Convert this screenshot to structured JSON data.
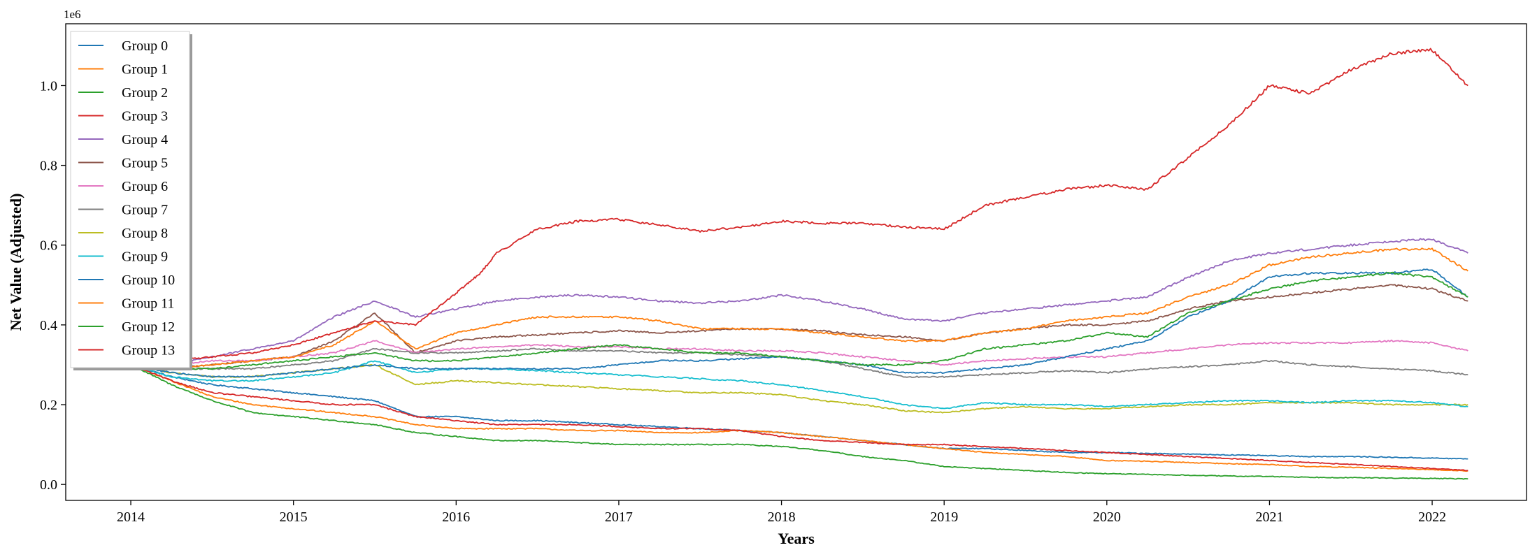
{
  "chart_data": {
    "type": "line",
    "xlabel": "Years",
    "ylabel": "Net Value (Adjusted)",
    "y_offset_label": "1e6",
    "xlim": [
      2013.6,
      2022.58
    ],
    "ylim": [
      -0.04,
      1.155
    ],
    "x_ticks": [
      2014,
      2015,
      2016,
      2017,
      2018,
      2019,
      2020,
      2021,
      2022
    ],
    "y_ticks": [
      0.0,
      0.2,
      0.4,
      0.6,
      0.8,
      1.0
    ],
    "y_tick_labels": [
      "0.0",
      "0.2",
      "0.4",
      "0.6",
      "0.8",
      "1.0"
    ],
    "grid": false,
    "legend_position": "upper-left",
    "series": [
      {
        "name": "Group 0",
        "color": "#1f77b4",
        "x": [
          2014.0,
          2014.25,
          2014.5,
          2014.75,
          2015.0,
          2015.25,
          2015.5,
          2015.75,
          2016.0,
          2016.25,
          2016.5,
          2016.75,
          2017.0,
          2017.25,
          2017.5,
          2017.75,
          2018.0,
          2018.25,
          2018.5,
          2018.75,
          2019.0,
          2019.25,
          2019.5,
          2019.75,
          2020.0,
          2020.25,
          2020.5,
          2020.75,
          2021.0,
          2021.25,
          2021.5,
          2021.75,
          2022.0,
          2022.22
        ],
        "values": [
          0.3,
          0.27,
          0.25,
          0.24,
          0.23,
          0.22,
          0.21,
          0.17,
          0.17,
          0.16,
          0.16,
          0.155,
          0.15,
          0.145,
          0.14,
          0.135,
          0.13,
          0.12,
          0.11,
          0.1,
          0.09,
          0.09,
          0.085,
          0.08,
          0.08,
          0.078,
          0.076,
          0.074,
          0.072,
          0.07,
          0.07,
          0.068,
          0.066,
          0.064
        ]
      },
      {
        "name": "Group 1",
        "color": "#ff7f0e",
        "x": [
          2014.0,
          2014.25,
          2014.5,
          2014.75,
          2015.0,
          2015.25,
          2015.5,
          2015.75,
          2016.0,
          2016.25,
          2016.5,
          2016.75,
          2017.0,
          2017.25,
          2017.5,
          2017.75,
          2018.0,
          2018.25,
          2018.5,
          2018.75,
          2019.0,
          2019.25,
          2019.5,
          2019.75,
          2020.0,
          2020.25,
          2020.5,
          2020.75,
          2021.0,
          2021.25,
          2021.5,
          2021.75,
          2022.0,
          2022.22
        ],
        "values": [
          0.3,
          0.26,
          0.22,
          0.2,
          0.19,
          0.18,
          0.17,
          0.15,
          0.14,
          0.14,
          0.14,
          0.135,
          0.135,
          0.13,
          0.13,
          0.135,
          0.13,
          0.12,
          0.11,
          0.1,
          0.09,
          0.08,
          0.075,
          0.07,
          0.06,
          0.058,
          0.055,
          0.052,
          0.05,
          0.045,
          0.043,
          0.04,
          0.037,
          0.034
        ]
      },
      {
        "name": "Group 2",
        "color": "#2ca02c",
        "x": [
          2014.0,
          2014.25,
          2014.5,
          2014.75,
          2015.0,
          2015.25,
          2015.5,
          2015.75,
          2016.0,
          2016.25,
          2016.5,
          2016.75,
          2017.0,
          2017.25,
          2017.5,
          2017.75,
          2018.0,
          2018.25,
          2018.5,
          2018.75,
          2019.0,
          2019.25,
          2019.5,
          2019.75,
          2020.0,
          2020.25,
          2020.5,
          2020.75,
          2021.0,
          2021.25,
          2021.5,
          2021.75,
          2022.0,
          2022.22
        ],
        "values": [
          0.3,
          0.25,
          0.21,
          0.18,
          0.17,
          0.16,
          0.15,
          0.13,
          0.12,
          0.11,
          0.11,
          0.105,
          0.1,
          0.1,
          0.1,
          0.1,
          0.095,
          0.085,
          0.07,
          0.06,
          0.045,
          0.04,
          0.035,
          0.03,
          0.027,
          0.025,
          0.023,
          0.021,
          0.02,
          0.018,
          0.017,
          0.016,
          0.015,
          0.014
        ]
      },
      {
        "name": "Group 3",
        "color": "#d62728",
        "x": [
          2014.0,
          2014.25,
          2014.5,
          2014.75,
          2015.0,
          2015.25,
          2015.5,
          2015.75,
          2016.0,
          2016.25,
          2016.5,
          2016.75,
          2017.0,
          2017.25,
          2017.5,
          2017.75,
          2018.0,
          2018.25,
          2018.5,
          2018.75,
          2019.0,
          2019.25,
          2019.5,
          2019.75,
          2020.0,
          2020.25,
          2020.5,
          2020.75,
          2021.0,
          2021.25,
          2021.5,
          2021.75,
          2022.0,
          2022.22
        ],
        "values": [
          0.3,
          0.26,
          0.23,
          0.22,
          0.21,
          0.2,
          0.2,
          0.17,
          0.16,
          0.15,
          0.15,
          0.15,
          0.145,
          0.14,
          0.14,
          0.135,
          0.12,
          0.11,
          0.105,
          0.1,
          0.1,
          0.095,
          0.09,
          0.085,
          0.08,
          0.075,
          0.07,
          0.065,
          0.06,
          0.055,
          0.05,
          0.045,
          0.04,
          0.035
        ]
      },
      {
        "name": "Group 4",
        "color": "#9467bd",
        "x": [
          2014.0,
          2014.25,
          2014.5,
          2014.75,
          2015.0,
          2015.25,
          2015.5,
          2015.75,
          2016.0,
          2016.25,
          2016.5,
          2016.75,
          2017.0,
          2017.25,
          2017.5,
          2017.75,
          2018.0,
          2018.25,
          2018.5,
          2018.75,
          2019.0,
          2019.25,
          2019.5,
          2019.75,
          2020.0,
          2020.25,
          2020.5,
          2020.75,
          2021.0,
          2021.25,
          2021.5,
          2021.75,
          2022.0,
          2022.22
        ],
        "values": [
          0.3,
          0.3,
          0.32,
          0.34,
          0.36,
          0.42,
          0.46,
          0.42,
          0.44,
          0.46,
          0.47,
          0.475,
          0.47,
          0.46,
          0.455,
          0.46,
          0.475,
          0.46,
          0.44,
          0.415,
          0.41,
          0.43,
          0.44,
          0.45,
          0.46,
          0.47,
          0.52,
          0.56,
          0.58,
          0.59,
          0.6,
          0.61,
          0.615,
          0.58
        ]
      },
      {
        "name": "Group 5",
        "color": "#8c564b",
        "x": [
          2014.0,
          2014.25,
          2014.5,
          2014.75,
          2015.0,
          2015.25,
          2015.5,
          2015.75,
          2016.0,
          2016.25,
          2016.5,
          2016.75,
          2017.0,
          2017.25,
          2017.5,
          2017.75,
          2018.0,
          2018.25,
          2018.5,
          2018.75,
          2019.0,
          2019.25,
          2019.5,
          2019.75,
          2020.0,
          2020.25,
          2020.5,
          2020.75,
          2021.0,
          2021.25,
          2021.5,
          2021.75,
          2022.0,
          2022.22
        ],
        "values": [
          0.3,
          0.29,
          0.3,
          0.31,
          0.32,
          0.36,
          0.43,
          0.33,
          0.36,
          0.37,
          0.375,
          0.38,
          0.385,
          0.38,
          0.385,
          0.39,
          0.39,
          0.385,
          0.375,
          0.37,
          0.36,
          0.38,
          0.39,
          0.4,
          0.4,
          0.41,
          0.44,
          0.46,
          0.47,
          0.48,
          0.49,
          0.5,
          0.49,
          0.46
        ]
      },
      {
        "name": "Group 6",
        "color": "#e377c2",
        "x": [
          2014.0,
          2014.25,
          2014.5,
          2014.75,
          2015.0,
          2015.25,
          2015.5,
          2015.75,
          2016.0,
          2016.25,
          2016.5,
          2016.75,
          2017.0,
          2017.25,
          2017.5,
          2017.75,
          2018.0,
          2018.25,
          2018.5,
          2018.75,
          2019.0,
          2019.25,
          2019.5,
          2019.75,
          2020.0,
          2020.25,
          2020.5,
          2020.75,
          2021.0,
          2021.25,
          2021.5,
          2021.75,
          2022.0,
          2022.22
        ],
        "values": [
          0.3,
          0.3,
          0.31,
          0.31,
          0.32,
          0.33,
          0.36,
          0.33,
          0.34,
          0.345,
          0.35,
          0.345,
          0.345,
          0.34,
          0.34,
          0.335,
          0.335,
          0.33,
          0.32,
          0.31,
          0.3,
          0.31,
          0.315,
          0.32,
          0.32,
          0.33,
          0.34,
          0.35,
          0.355,
          0.355,
          0.355,
          0.36,
          0.355,
          0.335
        ]
      },
      {
        "name": "Group 7",
        "color": "#7f7f7f",
        "x": [
          2014.0,
          2014.25,
          2014.5,
          2014.75,
          2015.0,
          2015.25,
          2015.5,
          2015.75,
          2016.0,
          2016.25,
          2016.5,
          2016.75,
          2017.0,
          2017.25,
          2017.5,
          2017.75,
          2018.0,
          2018.25,
          2018.5,
          2018.75,
          2019.0,
          2019.25,
          2019.5,
          2019.75,
          2020.0,
          2020.25,
          2020.5,
          2020.75,
          2021.0,
          2021.25,
          2021.5,
          2021.75,
          2022.0,
          2022.22
        ],
        "values": [
          0.3,
          0.29,
          0.29,
          0.29,
          0.3,
          0.31,
          0.34,
          0.33,
          0.33,
          0.335,
          0.34,
          0.335,
          0.335,
          0.33,
          0.33,
          0.325,
          0.32,
          0.31,
          0.29,
          0.27,
          0.27,
          0.275,
          0.28,
          0.285,
          0.28,
          0.29,
          0.295,
          0.3,
          0.31,
          0.3,
          0.295,
          0.29,
          0.285,
          0.275
        ]
      },
      {
        "name": "Group 8",
        "color": "#bcbd22",
        "x": [
          2014.0,
          2014.25,
          2014.5,
          2014.75,
          2015.0,
          2015.25,
          2015.5,
          2015.75,
          2016.0,
          2016.25,
          2016.5,
          2016.75,
          2017.0,
          2017.25,
          2017.5,
          2017.75,
          2018.0,
          2018.25,
          2018.5,
          2018.75,
          2019.0,
          2019.25,
          2019.5,
          2019.75,
          2020.0,
          2020.25,
          2020.5,
          2020.75,
          2021.0,
          2021.25,
          2021.5,
          2021.75,
          2022.0,
          2022.22
        ],
        "values": [
          0.3,
          0.28,
          0.27,
          0.27,
          0.28,
          0.29,
          0.3,
          0.25,
          0.26,
          0.255,
          0.25,
          0.245,
          0.24,
          0.235,
          0.23,
          0.23,
          0.225,
          0.21,
          0.2,
          0.185,
          0.18,
          0.19,
          0.195,
          0.19,
          0.19,
          0.195,
          0.2,
          0.2,
          0.205,
          0.205,
          0.205,
          0.2,
          0.2,
          0.2
        ]
      },
      {
        "name": "Group 9",
        "color": "#17becf",
        "x": [
          2014.0,
          2014.25,
          2014.5,
          2014.75,
          2015.0,
          2015.25,
          2015.5,
          2015.75,
          2016.0,
          2016.25,
          2016.5,
          2016.75,
          2017.0,
          2017.25,
          2017.5,
          2017.75,
          2018.0,
          2018.25,
          2018.5,
          2018.75,
          2019.0,
          2019.25,
          2019.5,
          2019.75,
          2020.0,
          2020.25,
          2020.5,
          2020.75,
          2021.0,
          2021.25,
          2021.5,
          2021.75,
          2022.0,
          2022.22
        ],
        "values": [
          0.3,
          0.27,
          0.26,
          0.26,
          0.27,
          0.28,
          0.31,
          0.28,
          0.29,
          0.29,
          0.285,
          0.28,
          0.275,
          0.27,
          0.265,
          0.26,
          0.25,
          0.235,
          0.22,
          0.2,
          0.19,
          0.205,
          0.2,
          0.2,
          0.195,
          0.2,
          0.205,
          0.21,
          0.21,
          0.205,
          0.21,
          0.21,
          0.205,
          0.195
        ]
      },
      {
        "name": "Group 10",
        "color": "#1f77b4",
        "x": [
          2014.0,
          2014.25,
          2014.5,
          2014.75,
          2015.0,
          2015.25,
          2015.5,
          2015.75,
          2016.0,
          2016.25,
          2016.5,
          2016.75,
          2017.0,
          2017.25,
          2017.5,
          2017.75,
          2018.0,
          2018.25,
          2018.5,
          2018.75,
          2019.0,
          2019.25,
          2019.5,
          2019.75,
          2020.0,
          2020.25,
          2020.5,
          2020.75,
          2021.0,
          2021.25,
          2021.5,
          2021.75,
          2022.0,
          2022.22
        ],
        "values": [
          0.3,
          0.28,
          0.27,
          0.27,
          0.28,
          0.29,
          0.3,
          0.29,
          0.29,
          0.29,
          0.29,
          0.29,
          0.3,
          0.31,
          0.31,
          0.315,
          0.32,
          0.31,
          0.3,
          0.28,
          0.28,
          0.29,
          0.3,
          0.32,
          0.34,
          0.36,
          0.42,
          0.46,
          0.52,
          0.53,
          0.53,
          0.53,
          0.54,
          0.47
        ]
      },
      {
        "name": "Group 11",
        "color": "#ff7f0e",
        "x": [
          2014.0,
          2014.25,
          2014.5,
          2014.75,
          2015.0,
          2015.25,
          2015.5,
          2015.75,
          2016.0,
          2016.25,
          2016.5,
          2016.75,
          2017.0,
          2017.25,
          2017.5,
          2017.75,
          2018.0,
          2018.25,
          2018.5,
          2018.75,
          2019.0,
          2019.25,
          2019.5,
          2019.75,
          2020.0,
          2020.25,
          2020.5,
          2020.75,
          2021.0,
          2021.25,
          2021.5,
          2021.75,
          2022.0,
          2022.22
        ],
        "values": [
          0.3,
          0.29,
          0.3,
          0.31,
          0.32,
          0.35,
          0.41,
          0.34,
          0.38,
          0.4,
          0.42,
          0.42,
          0.42,
          0.41,
          0.39,
          0.39,
          0.39,
          0.38,
          0.37,
          0.36,
          0.36,
          0.38,
          0.39,
          0.41,
          0.42,
          0.43,
          0.47,
          0.5,
          0.55,
          0.57,
          0.58,
          0.59,
          0.59,
          0.535
        ]
      },
      {
        "name": "Group 12",
        "color": "#2ca02c",
        "x": [
          2014.0,
          2014.25,
          2014.5,
          2014.75,
          2015.0,
          2015.25,
          2015.5,
          2015.75,
          2016.0,
          2016.25,
          2016.5,
          2016.75,
          2017.0,
          2017.25,
          2017.5,
          2017.75,
          2018.0,
          2018.25,
          2018.5,
          2018.75,
          2019.0,
          2019.25,
          2019.5,
          2019.75,
          2020.0,
          2020.25,
          2020.5,
          2020.75,
          2021.0,
          2021.25,
          2021.5,
          2021.75,
          2022.0,
          2022.22
        ],
        "values": [
          0.3,
          0.29,
          0.29,
          0.3,
          0.31,
          0.32,
          0.33,
          0.31,
          0.31,
          0.32,
          0.33,
          0.34,
          0.35,
          0.34,
          0.33,
          0.33,
          0.32,
          0.31,
          0.3,
          0.3,
          0.31,
          0.34,
          0.35,
          0.36,
          0.38,
          0.37,
          0.43,
          0.46,
          0.49,
          0.51,
          0.52,
          0.53,
          0.52,
          0.47
        ]
      },
      {
        "name": "Group 13",
        "color": "#d62728",
        "x": [
          2014.0,
          2014.25,
          2014.5,
          2014.75,
          2015.0,
          2015.25,
          2015.5,
          2015.75,
          2016.0,
          2016.15,
          2016.25,
          2016.5,
          2016.75,
          2017.0,
          2017.25,
          2017.5,
          2017.75,
          2018.0,
          2018.25,
          2018.5,
          2018.75,
          2019.0,
          2019.25,
          2019.5,
          2019.75,
          2020.0,
          2020.25,
          2020.5,
          2020.75,
          2021.0,
          2021.25,
          2021.5,
          2021.75,
          2022.0,
          2022.22
        ],
        "values": [
          0.3,
          0.31,
          0.32,
          0.33,
          0.35,
          0.38,
          0.41,
          0.4,
          0.48,
          0.53,
          0.58,
          0.64,
          0.66,
          0.665,
          0.65,
          0.635,
          0.645,
          0.66,
          0.655,
          0.655,
          0.645,
          0.64,
          0.7,
          0.72,
          0.74,
          0.75,
          0.74,
          0.82,
          0.9,
          1.0,
          0.98,
          1.04,
          1.08,
          1.09,
          1.0
        ]
      }
    ]
  }
}
